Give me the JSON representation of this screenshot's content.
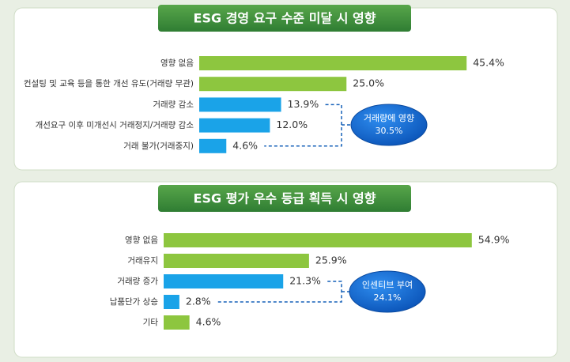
{
  "chart_data": [
    {
      "type": "bar",
      "orientation": "horizontal",
      "title": "ESG 경영 요구 수준 미달 시 영향",
      "categories": [
        "영향 없음",
        "컨설팅 및 교육 등을 통한 개선 유도(거래량 무관)",
        "거래량 감소",
        "개선요구 이후 미개선시 거래정지/거래량 감소",
        "거래 불가(거래중지)"
      ],
      "values": [
        45.4,
        25.0,
        13.9,
        12.0,
        4.6
      ],
      "value_labels": [
        "45.4%",
        "25.0%",
        "13.9%",
        "12.0%",
        "4.6%"
      ],
      "colors": [
        "#8dc63f",
        "#8dc63f",
        "#1aa3e8",
        "#1aa3e8",
        "#1aa3e8"
      ],
      "annotation": [
        "거래량에 영향",
        "30.5%"
      ]
    },
    {
      "type": "bar",
      "orientation": "horizontal",
      "title": "ESG 평가 우수 등급 획득 시 영향",
      "categories": [
        "영향 없음",
        "거래유지",
        "거래량 증가",
        "납품단가 상승",
        "기타"
      ],
      "values": [
        54.9,
        25.9,
        21.3,
        2.8,
        4.6
      ],
      "value_labels": [
        "54.9%",
        "25.9%",
        "21.3%",
        "2.8%",
        "4.6%"
      ],
      "colors": [
        "#8dc63f",
        "#8dc63f",
        "#1aa3e8",
        "#1aa3e8",
        "#8dc63f"
      ],
      "annotation": [
        "인센티브 부여",
        "24.1%"
      ]
    }
  ]
}
